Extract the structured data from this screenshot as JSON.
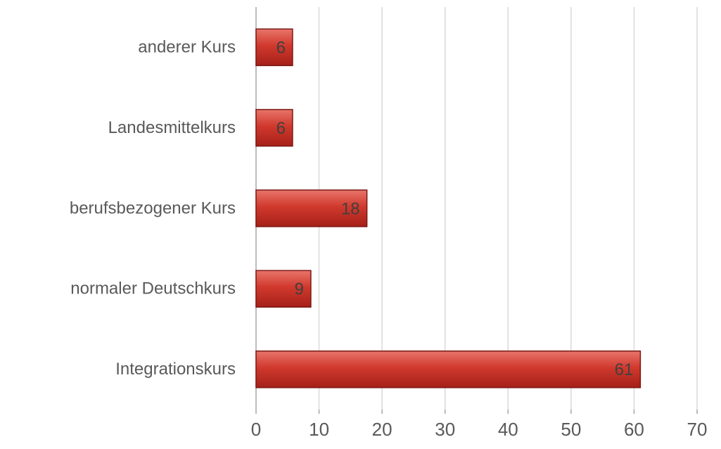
{
  "chart_data": {
    "type": "barh",
    "categories": [
      "anderer Kurs",
      "Landesmittelkurs",
      "berufsbezogener Kurs",
      "normaler Deutschkurs",
      "Integrationskurs"
    ],
    "values": [
      5.8,
      5.8,
      17.6,
      8.7,
      61.0
    ],
    "value_labels": [
      "6",
      "6",
      "18",
      "9",
      "61"
    ],
    "color": "#c0392b",
    "xlim": [
      0,
      70
    ],
    "xticks": [
      0,
      10,
      20,
      30,
      40,
      50,
      60,
      70
    ],
    "grid": true
  }
}
